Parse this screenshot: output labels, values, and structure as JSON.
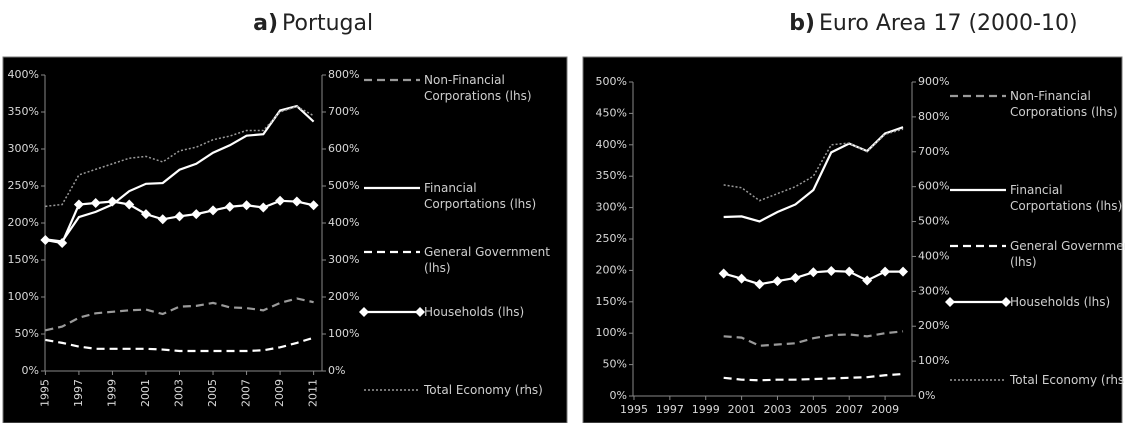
{
  "chart_data": [
    {
      "type": "line",
      "panel": "a)",
      "title": "Portugal",
      "x": [
        1995,
        1996,
        1997,
        1998,
        1999,
        2000,
        2001,
        2002,
        2003,
        2004,
        2005,
        2006,
        2007,
        2008,
        2009,
        2010,
        2011
      ],
      "xlim": [
        1994.5,
        2011.5
      ],
      "xticks": [
        1995,
        1997,
        1999,
        2001,
        2003,
        2005,
        2007,
        2009,
        2011
      ],
      "ylim": [
        0,
        400
      ],
      "yticks": [
        {
          "value": 0,
          "label": "0%"
        },
        {
          "value": 50,
          "label": "50%"
        },
        {
          "value": 100,
          "label": "100%"
        },
        {
          "value": 150,
          "label": "150%"
        },
        {
          "value": 200,
          "label": "200%"
        },
        {
          "value": 250,
          "label": "250%"
        },
        {
          "value": 300,
          "label": "300%"
        },
        {
          "value": 350,
          "label": "350%"
        },
        {
          "value": 400,
          "label": "400%"
        }
      ],
      "y2lim": [
        0,
        800
      ],
      "y2ticks": [
        {
          "value": 0,
          "label": "0%"
        },
        {
          "value": 100,
          "label": "100%"
        },
        {
          "value": 200,
          "label": "200%"
        },
        {
          "value": 300,
          "label": "300%"
        },
        {
          "value": 400,
          "label": "400%"
        },
        {
          "value": 500,
          "label": "500%"
        },
        {
          "value": 600,
          "label": "600%"
        },
        {
          "value": 700,
          "label": "700%"
        },
        {
          "value": 800,
          "label": "800%"
        }
      ],
      "series": [
        {
          "name": "Non-Financial Corporations (lhs)",
          "color": "#9a9a9a",
          "style": "dashed",
          "values": [
            55,
            60,
            72,
            78,
            80,
            82,
            83,
            77,
            87,
            88,
            92,
            86,
            85,
            82,
            92,
            98,
            93
          ]
        },
        {
          "name": "Financial Corportations (lhs)",
          "color": "#ffffff",
          "style": "solid",
          "values": [
            178,
            175,
            208,
            215,
            225,
            243,
            253,
            254,
            272,
            280,
            295,
            305,
            318,
            320,
            352,
            358,
            337
          ]
        },
        {
          "name": "General Government (lhs)",
          "color": "#ffffff",
          "style": "dashed",
          "values": [
            42,
            38,
            33,
            30,
            30,
            30,
            30,
            29,
            27,
            27,
            27,
            27,
            27,
            28,
            32,
            38,
            45
          ]
        },
        {
          "name": "Households (lhs)",
          "color": "#ffffff",
          "style": "solid",
          "marker": "diamond",
          "values": [
            177,
            173,
            225,
            227,
            229,
            225,
            212,
            205,
            209,
            212,
            217,
            222,
            224,
            221,
            230,
            229,
            224
          ]
        },
        {
          "name": "Total Economy (rhs)",
          "color": "#9a9a9a",
          "style": "dotted",
          "axis": "y2",
          "values": [
            445,
            450,
            530,
            545,
            560,
            575,
            580,
            565,
            595,
            605,
            625,
            635,
            650,
            650,
            700,
            715,
            690
          ]
        }
      ]
    },
    {
      "type": "line",
      "panel": "b)",
      "title": "Euro Area 17 (2000-10)",
      "x": [
        2000,
        2001,
        2002,
        2003,
        2004,
        2005,
        2006,
        2007,
        2008,
        2009,
        2010
      ],
      "xlim": [
        1994.5,
        2010.5
      ],
      "xticks": [
        1995,
        1997,
        1999,
        2001,
        2003,
        2005,
        2007,
        2009
      ],
      "ylim": [
        0,
        500
      ],
      "yticks": [
        {
          "value": 0,
          "label": "0%"
        },
        {
          "value": 50,
          "label": "50%"
        },
        {
          "value": 100,
          "label": "100%"
        },
        {
          "value": 150,
          "label": "150%"
        },
        {
          "value": 200,
          "label": "200%"
        },
        {
          "value": 250,
          "label": "250%"
        },
        {
          "value": 300,
          "label": "300%"
        },
        {
          "value": 350,
          "label": "350%"
        },
        {
          "value": 400,
          "label": "400%"
        },
        {
          "value": 450,
          "label": "450%"
        },
        {
          "value": 500,
          "label": "500%"
        }
      ],
      "y2lim": [
        0,
        900
      ],
      "y2ticks": [
        {
          "value": 0,
          "label": "0%"
        },
        {
          "value": 100,
          "label": "100%"
        },
        {
          "value": 200,
          "label": "200%"
        },
        {
          "value": 300,
          "label": "300%"
        },
        {
          "value": 400,
          "label": "400%"
        },
        {
          "value": 500,
          "label": "500%"
        },
        {
          "value": 600,
          "label": "600%"
        },
        {
          "value": 700,
          "label": "700%"
        },
        {
          "value": 800,
          "label": "800%"
        },
        {
          "value": 900,
          "label": "900%"
        }
      ],
      "series": [
        {
          "name": "Non-Financial Corporations (lhs)",
          "color": "#9a9a9a",
          "style": "dashed",
          "values": [
            95,
            93,
            80,
            82,
            84,
            92,
            97,
            98,
            95,
            100,
            103
          ]
        },
        {
          "name": "Financial Corportations (lhs)",
          "color": "#ffffff",
          "style": "solid",
          "values": [
            285,
            286,
            278,
            293,
            305,
            328,
            388,
            402,
            390,
            418,
            428
          ]
        },
        {
          "name": "General Government (lhs)",
          "color": "#ffffff",
          "style": "dashed",
          "values": [
            29,
            26,
            25,
            26,
            26,
            27,
            28,
            29,
            30,
            33,
            35
          ]
        },
        {
          "name": "Households (lhs)",
          "color": "#ffffff",
          "style": "solid",
          "marker": "diamond",
          "values": [
            195,
            187,
            178,
            183,
            188,
            197,
            199,
            198,
            184,
            198,
            198
          ]
        },
        {
          "name": "Total Economy (rhs)",
          "color": "#9a9a9a",
          "style": "dotted",
          "axis": "y2",
          "values": [
            605,
            597,
            560,
            580,
            600,
            630,
            720,
            725,
            700,
            750,
            765
          ]
        }
      ]
    }
  ]
}
